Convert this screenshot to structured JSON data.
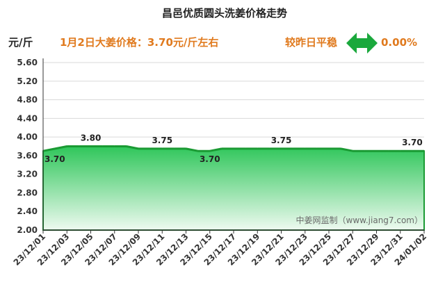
{
  "header": {
    "unit": "元/斤",
    "headline": "1月2日大姜价格：3.70元/斤左右",
    "change_label": "较昨日平稳",
    "change_value": "0.00%",
    "arrow_icon": "double-arrow-icon"
  },
  "watermark": "中姜网监制（www.jiang7.com）",
  "colors": {
    "line": "#1a9a33",
    "fill_top": "#2fc65a",
    "fill_bottom": "#eefaf0",
    "headline": "#e07a1e",
    "arrow": "#1aa83c",
    "axis": "#333333",
    "grid": "#d9d9d9"
  },
  "chart_data": {
    "type": "area",
    "title": "昌邑优质圆头洗姜价格走势",
    "xlabel": "",
    "ylabel": "元/斤",
    "ylim": [
      2.0,
      5.6
    ],
    "yticks": [
      "5.60",
      "5.20",
      "4.80",
      "4.40",
      "4.00",
      "3.60",
      "3.20",
      "2.80",
      "2.40",
      "2.00"
    ],
    "ytick_values": [
      5.6,
      5.2,
      4.8,
      4.4,
      4.0,
      3.6,
      3.2,
      2.8,
      2.4,
      2.0
    ],
    "grid": true,
    "x": [
      "23/12/01",
      "23/12/02",
      "23/12/03",
      "23/12/04",
      "23/12/05",
      "23/12/06",
      "23/12/07",
      "23/12/08",
      "23/12/09",
      "23/12/10",
      "23/12/11",
      "23/12/12",
      "23/12/13",
      "23/12/14",
      "23/12/15",
      "23/12/16",
      "23/12/17",
      "23/12/18",
      "23/12/19",
      "23/12/20",
      "23/12/21",
      "23/12/22",
      "23/12/23",
      "23/12/24",
      "23/12/25",
      "23/12/26",
      "23/12/27",
      "23/12/28",
      "23/12/29",
      "23/12/30",
      "23/12/31",
      "24/01/01",
      "24/01/02"
    ],
    "xtick_labels": [
      "23/12/01",
      "23/12/03",
      "23/12/05",
      "23/12/07",
      "23/12/09",
      "23/12/11",
      "23/12/13",
      "23/12/15",
      "23/12/17",
      "23/12/19",
      "23/12/21",
      "23/12/23",
      "23/12/25",
      "23/12/27",
      "23/12/29",
      "23/12/31",
      "24/01/02"
    ],
    "series": [
      {
        "values": [
          3.7,
          3.75,
          3.8,
          3.8,
          3.8,
          3.8,
          3.8,
          3.8,
          3.75,
          3.75,
          3.75,
          3.75,
          3.75,
          3.7,
          3.7,
          3.75,
          3.75,
          3.75,
          3.75,
          3.75,
          3.75,
          3.75,
          3.75,
          3.75,
          3.75,
          3.75,
          3.7,
          3.7,
          3.7,
          3.7,
          3.7,
          3.7,
          3.7
        ]
      }
    ],
    "data_labels": [
      {
        "index": 0,
        "text": "3.70",
        "pos": "below-right"
      },
      {
        "index": 4,
        "text": "3.80",
        "pos": "above"
      },
      {
        "index": 10,
        "text": "3.75",
        "pos": "above"
      },
      {
        "index": 14,
        "text": "3.70",
        "pos": "below"
      },
      {
        "index": 20,
        "text": "3.75",
        "pos": "above"
      },
      {
        "index": 31,
        "text": "3.70",
        "pos": "above"
      }
    ]
  }
}
